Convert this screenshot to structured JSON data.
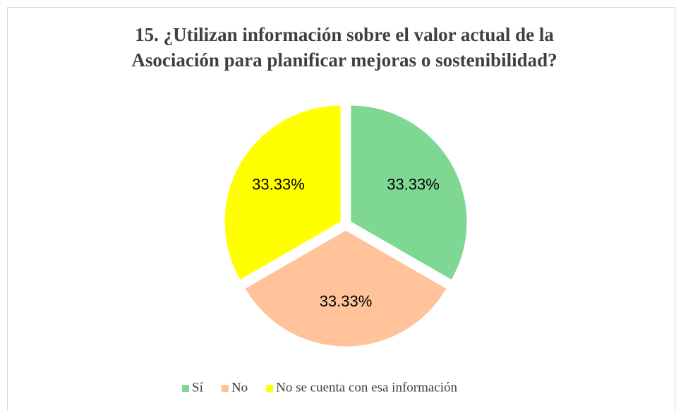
{
  "chart_data": {
    "type": "pie",
    "title": [
      "15. ¿Utilizan información sobre el valor actual de la",
      "Asociación para planificar mejoras o sostenibilidad?"
    ],
    "categories": [
      "Sí",
      "No",
      "No se cuenta con esa información"
    ],
    "values": [
      33.33,
      33.33,
      33.33
    ],
    "value_labels": [
      "33.33%",
      "33.33%",
      "33.33%"
    ],
    "colors": [
      "#7fd794",
      "#ffc299",
      "#ffff00"
    ],
    "legend": "bottom"
  }
}
